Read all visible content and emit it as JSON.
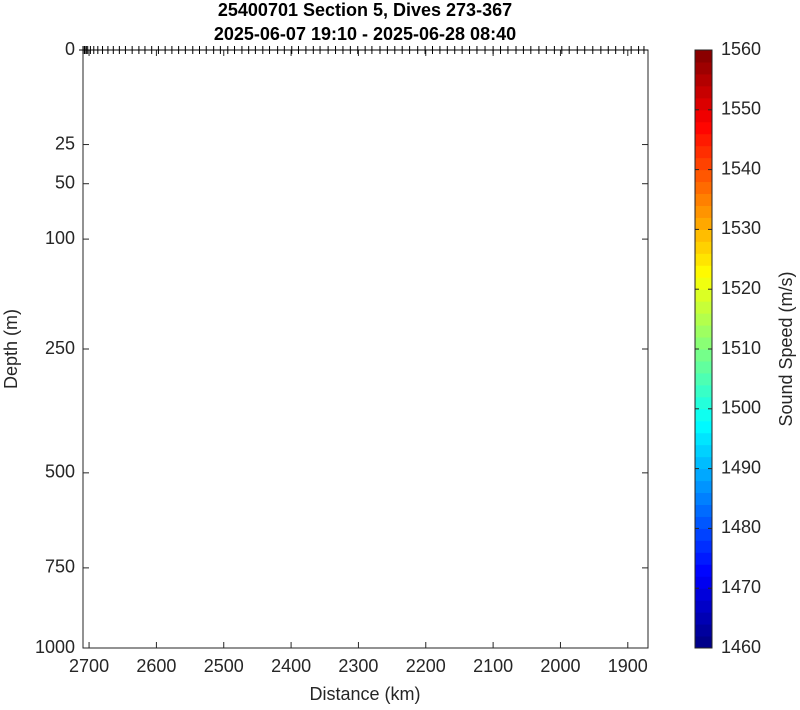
{
  "chart_data": {
    "type": "section",
    "title": "25400701 Section 5, Dives 273-367",
    "subtitle": "2025-06-07 19:10 - 2025-06-28 08:40",
    "x_label": "Distance (km)",
    "y_label": "Depth (m)",
    "xlim": [
      2709,
      1870
    ],
    "xticks": [
      2700,
      2600,
      2500,
      2400,
      2300,
      2200,
      2100,
      2000,
      1900
    ],
    "ylim": [
      0,
      1000
    ],
    "yticks": [
      0,
      25,
      50,
      100,
      250,
      500,
      750,
      1000
    ],
    "yscale": "sqrt",
    "y_reversed": true,
    "dive_positions": [
      2709,
      2707,
      2706,
      2704,
      2702,
      2698,
      2693,
      2687,
      2680,
      2672,
      2664,
      2655,
      2646,
      2636,
      2626,
      2617,
      2607,
      2597,
      2587,
      2577,
      2567,
      2557,
      2546,
      2536,
      2526,
      2515,
      2505,
      2494,
      2484,
      2473,
      2463,
      2453,
      2442,
      2432,
      2420,
      2410,
      2399,
      2389,
      2378,
      2367,
      2357,
      2345,
      2334,
      2323,
      2312,
      2301,
      2290,
      2280,
      2268,
      2257,
      2246,
      2235,
      2224,
      2212,
      2201,
      2190,
      2179,
      2168,
      2157,
      2146,
      2135,
      2124,
      2112,
      2100,
      2089,
      2078,
      2066,
      2055,
      2044,
      2032,
      2021,
      2009,
      1998,
      1987,
      1975,
      1964,
      1952,
      1940,
      1929,
      1918,
      1906,
      1895,
      1884,
      1876
    ],
    "colorbar": {
      "label": "Sound Speed (m/s)",
      "colormap": "jet",
      "lim": [
        1460,
        1560
      ],
      "ticks": [
        1460,
        1470,
        1480,
        1490,
        1500,
        1510,
        1520,
        1530,
        1540,
        1550,
        1560
      ]
    }
  }
}
